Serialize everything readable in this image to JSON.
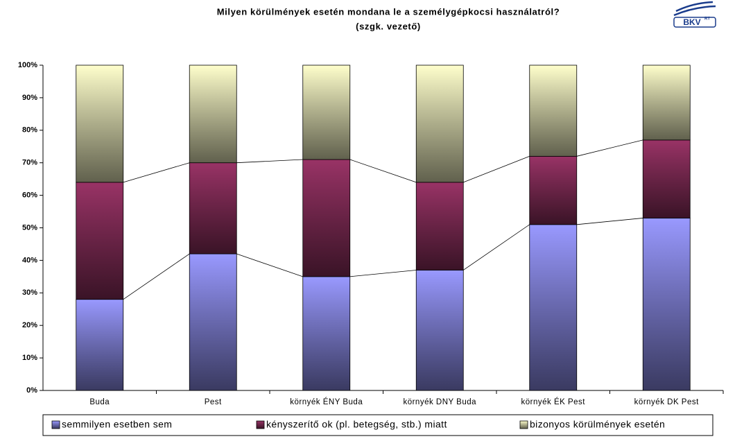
{
  "chart_data": {
    "type": "stacked_bar",
    "title": "Milyen körülmények esetén mondana le a személygépkocsi használatról?",
    "subtitle": "(szgk. vezető)",
    "logo": {
      "text": "BKV",
      "superscript": "RT"
    },
    "categories": [
      "Buda",
      "Pest",
      "környék ÉNY Buda",
      "környék DNY Buda",
      "környék ÉK Pest",
      "környék DK Pest"
    ],
    "series": [
      {
        "name": "semmilyen esetben sem",
        "color": "#9999ff",
        "values": [
          28,
          42,
          35,
          37,
          51,
          53
        ]
      },
      {
        "name": "kényszerítő ok (pl. betegség, stb.) miatt",
        "color": "#993366",
        "values": [
          36,
          28,
          36,
          27,
          21,
          24
        ]
      },
      {
        "name": "bizonyos körülmények esetén",
        "color": "#ffffcc",
        "values": [
          36,
          30,
          29,
          36,
          28,
          23
        ]
      }
    ],
    "ylim": [
      0,
      100
    ],
    "yticks": [
      {
        "value": 0,
        "label": "0%"
      },
      {
        "value": 10,
        "label": "10%"
      },
      {
        "value": 20,
        "label": "20%"
      },
      {
        "value": 30,
        "label": "30%"
      },
      {
        "value": 40,
        "label": "40%"
      },
      {
        "value": 50,
        "label": "50%"
      },
      {
        "value": 60,
        "label": "60%"
      },
      {
        "value": 70,
        "label": "70%"
      },
      {
        "value": 80,
        "label": "80%"
      },
      {
        "value": 90,
        "label": "90%"
      },
      {
        "value": 100,
        "label": "100%"
      }
    ],
    "legend": "bottom"
  }
}
